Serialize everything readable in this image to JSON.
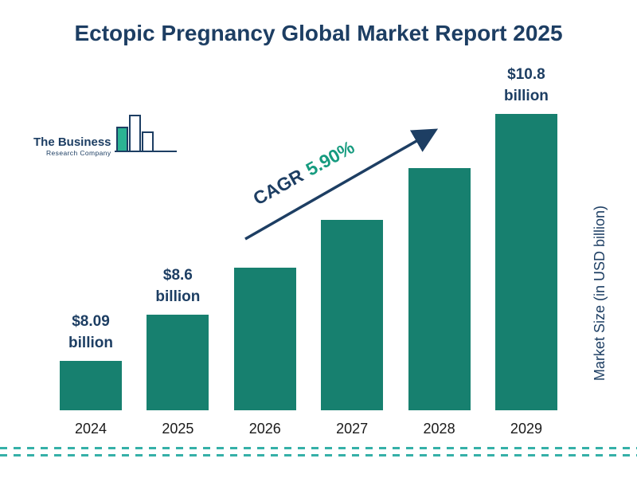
{
  "title": "Ectopic Pregnancy Global Market Report 2025",
  "logo": {
    "line1": "The Business",
    "line2": "Research Company"
  },
  "cagr": {
    "prefix": "CAGR",
    "value": "5.90%"
  },
  "y_axis_label": "Market Size (in USD billion)",
  "colors": {
    "navy": "#1d3e63",
    "bar": "#17806f",
    "teal": "#169b7f",
    "dash": "#35b0a8",
    "logo_fill": "#2bb393"
  },
  "chart_data": {
    "type": "bar",
    "title": "Ectopic Pregnancy Global Market Report 2025",
    "categories": [
      "2024",
      "2025",
      "2026",
      "2027",
      "2028",
      "2029"
    ],
    "values": [
      8.09,
      8.6,
      9.11,
      9.64,
      10.21,
      10.8
    ],
    "labels": [
      {
        "amount": "$8.09",
        "unit": "billion"
      },
      {
        "amount": "$8.6",
        "unit": "billion"
      },
      null,
      null,
      null,
      {
        "amount": "$10.8",
        "unit": "billion"
      }
    ],
    "xlabel": "",
    "ylabel": "Market Size (in USD billion)",
    "cagr": "5.90%",
    "baseline_value": 7.55,
    "max_value": 10.8,
    "grid": false,
    "legend": "none"
  }
}
